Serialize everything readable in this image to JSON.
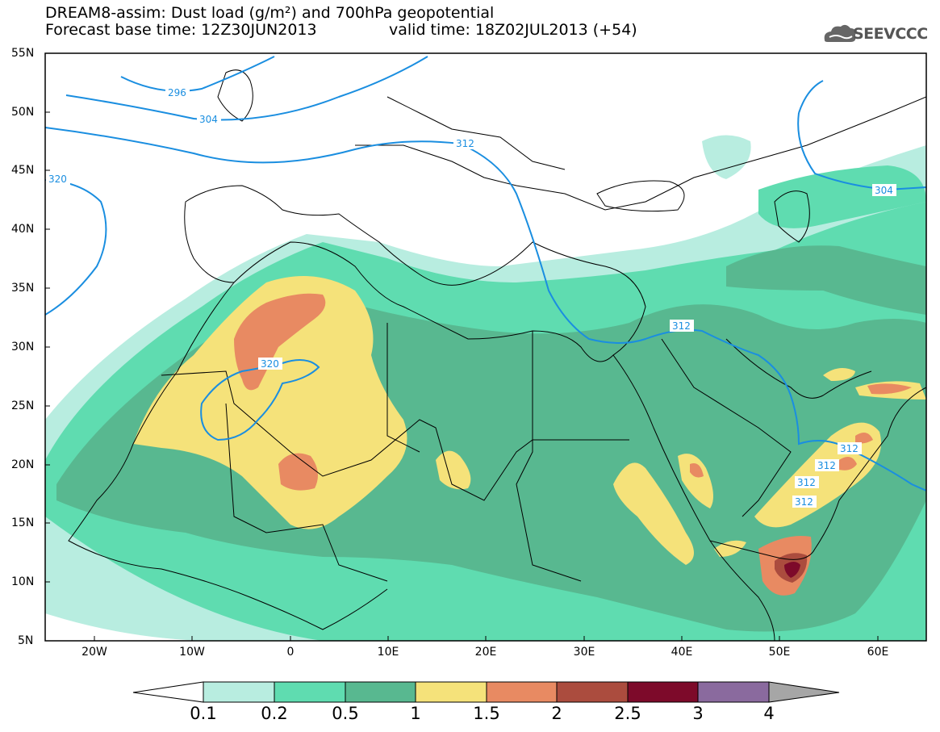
{
  "header": {
    "title_line1": "DREAM8-assim: Dust load (g/m²) and 700hPa geopotential",
    "title_line2": "Forecast base time: 12Z30JUN2013",
    "valid_time": "valid time: 18Z02JUL2013 (+54)",
    "logo_text": "SEEVCCC",
    "logo_icon": "cloud-logo-icon"
  },
  "map": {
    "lat_labels": [
      "55N",
      "50N",
      "45N",
      "40N",
      "35N",
      "30N",
      "25N",
      "20N",
      "15N",
      "10N",
      "5N"
    ],
    "lon_labels": [
      "20W",
      "10W",
      "0",
      "10E",
      "20E",
      "30E",
      "40E",
      "50E",
      "60E"
    ],
    "contour_labels": [
      "296",
      "304",
      "312",
      "320",
      "320",
      "304",
      "312",
      "312",
      "312",
      "312",
      "312"
    ],
    "contour_color": "#1a8ee0"
  },
  "colorbar": {
    "labels": [
      "0.1",
      "0.2",
      "0.5",
      "1",
      "1.5",
      "2",
      "2.5",
      "3",
      "4"
    ],
    "colors": [
      "#ffffff",
      "#b8ede0",
      "#5fdcb0",
      "#58b890",
      "#f5e27a",
      "#e88a62",
      "#ab4c3e",
      "#7d0a2a",
      "#8a6a9e",
      "#a6a6a6"
    ]
  }
}
